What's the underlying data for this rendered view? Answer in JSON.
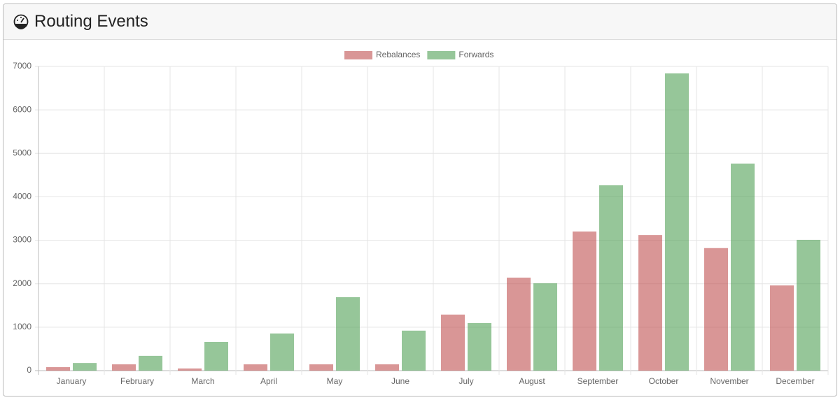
{
  "header": {
    "title": "Routing Events"
  },
  "chart_data": {
    "type": "bar",
    "categories": [
      "January",
      "February",
      "March",
      "April",
      "May",
      "June",
      "July",
      "August",
      "September",
      "October",
      "November",
      "December"
    ],
    "series": [
      {
        "name": "Rebalances",
        "color": "rgba(192,80,80,0.6)",
        "values": [
          80,
          145,
          50,
          145,
          145,
          145,
          1290,
          2140,
          3200,
          3120,
          2820,
          1960
        ]
      },
      {
        "name": "Forwards",
        "color": "rgba(80,160,85,0.6)",
        "values": [
          175,
          340,
          660,
          855,
          1690,
          920,
          1095,
          2010,
          4265,
          6840,
          4765,
          3010
        ]
      }
    ],
    "ylim": [
      0,
      7000
    ],
    "yticks": [
      0,
      1000,
      2000,
      3000,
      4000,
      5000,
      6000,
      7000
    ],
    "grid": true,
    "legend": "top"
  }
}
